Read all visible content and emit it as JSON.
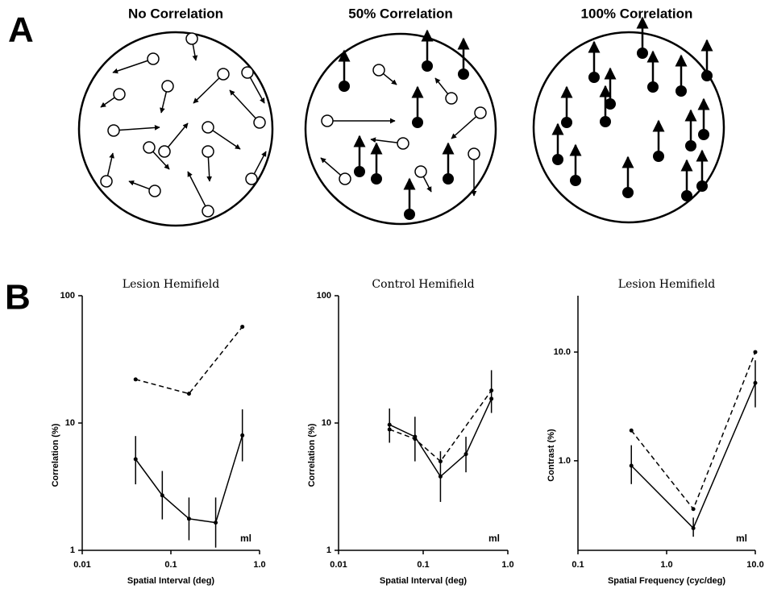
{
  "panel_a": {
    "label": "A",
    "titles": [
      "No Correlation",
      "50% Correlation",
      "100% Correlation"
    ]
  },
  "panel_b": {
    "label": "B"
  },
  "chart_data": [
    {
      "type": "line",
      "title": "Lesion Hemifield",
      "xlabel": "Spatial Interval (deg)",
      "ylabel": "Correlation (%)",
      "annotation": "ml",
      "xscale": "log",
      "yscale": "log",
      "xlim": [
        0.01,
        1
      ],
      "ylim": [
        1,
        100
      ],
      "xticks": [
        0.01,
        0.1,
        {
          "value": 1,
          "label": "1.0"
        }
      ],
      "yticks": [
        1,
        10,
        100
      ],
      "series": [
        {
          "style": "solid",
          "color": "#000000",
          "x": [
            0.04,
            0.08,
            0.16,
            0.32,
            0.64
          ],
          "values": [
            5.2,
            2.7,
            1.77,
            1.65,
            8.0
          ],
          "error_low": [
            3.3,
            1.75,
            1.2,
            1.05,
            5.0
          ],
          "error_high": [
            7.9,
            4.2,
            2.6,
            2.6,
            12.8
          ]
        },
        {
          "style": "dashed",
          "color": "#000000",
          "x": [
            0.04,
            0.16,
            0.64
          ],
          "values": [
            22,
            17,
            57
          ]
        }
      ]
    },
    {
      "type": "line",
      "title": "Control Hemifield",
      "xlabel": "Spatial Interval (deg)",
      "ylabel": "Correlation (%)",
      "annotation": "ml",
      "xscale": "log",
      "yscale": "log",
      "xlim": [
        0.01,
        1
      ],
      "ylim": [
        1,
        100
      ],
      "xticks": [
        0.01,
        0.1,
        {
          "value": 1,
          "label": "1.0"
        }
      ],
      "yticks": [
        1,
        10,
        100
      ],
      "series": [
        {
          "style": "solid",
          "color": "#000000",
          "x": [
            0.04,
            0.08,
            0.16,
            0.32,
            0.64
          ],
          "values": [
            9.7,
            7.8,
            3.8,
            5.7,
            15.5
          ],
          "error_low": [
            7.0,
            5.0,
            2.4,
            4.1,
            12
          ],
          "error_high": [
            13,
            11.2,
            6.0,
            7.8,
            26
          ]
        },
        {
          "style": "dashed",
          "color": "#000000",
          "x": [
            0.04,
            0.08,
            0.16,
            0.64
          ],
          "values": [
            8.9,
            7.5,
            5.0,
            18
          ]
        }
      ]
    },
    {
      "type": "line",
      "title": "Lesion Hemifield",
      "xlabel": "Spatial Frequency (cyc/deg)",
      "ylabel": "Contrast (%)",
      "annotation": "ml",
      "xscale": "log",
      "yscale": "log",
      "xlim": [
        0.1,
        10
      ],
      "ylim": [
        0.15,
        33
      ],
      "xticks": [
        0.1,
        {
          "value": 1,
          "label": "1.0"
        },
        {
          "value": 10,
          "label": "10.0"
        }
      ],
      "yticks": [
        {
          "value": 1,
          "label": "1.0"
        },
        {
          "value": 10,
          "label": "10.0"
        }
      ],
      "series": [
        {
          "style": "solid",
          "color": "#000000",
          "x": [
            0.4,
            2,
            10
          ],
          "values": [
            0.9,
            0.24,
            5.2
          ],
          "error_low": [
            0.61,
            0.2,
            3.1
          ],
          "error_high": [
            1.39,
            0.3,
            8.4
          ]
        },
        {
          "style": "dashed",
          "color": "#000000",
          "x": [
            0.4,
            2,
            10
          ],
          "values": [
            1.9,
            0.36,
            10
          ]
        }
      ]
    }
  ]
}
